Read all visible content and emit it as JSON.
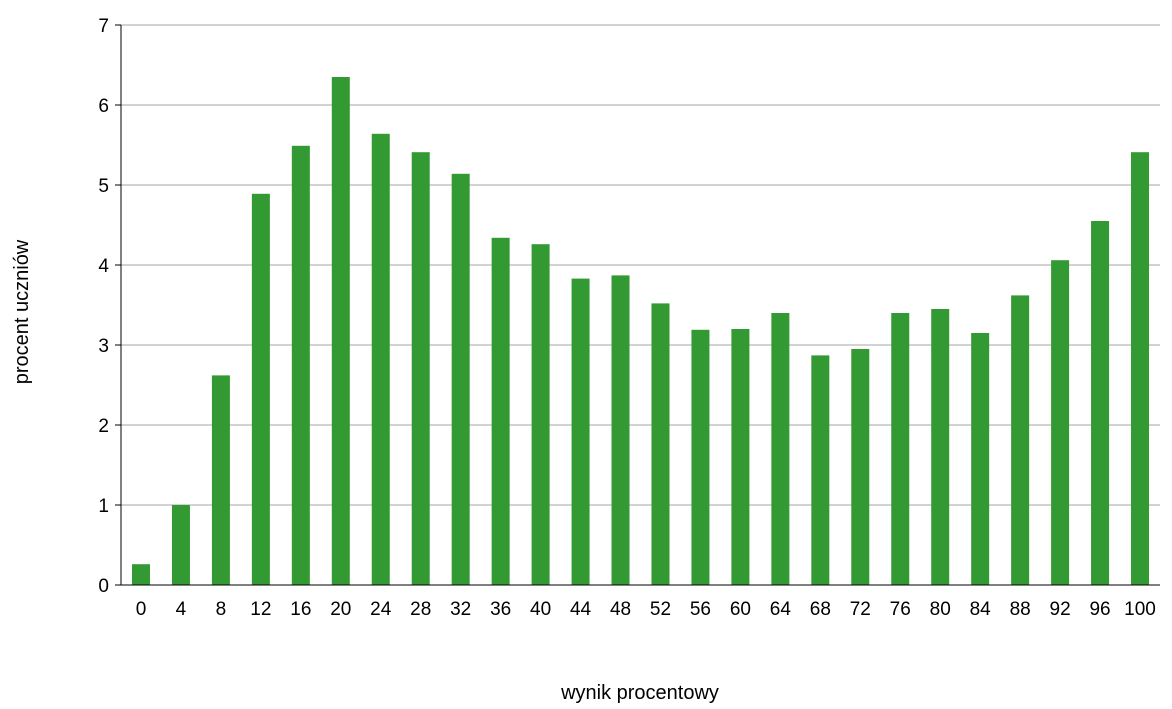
{
  "chart_data": {
    "type": "bar",
    "title": "",
    "xlabel": "wynik procentowy",
    "ylabel": "procent uczniów",
    "categories": [
      "0",
      "4",
      "8",
      "12",
      "16",
      "20",
      "24",
      "28",
      "32",
      "36",
      "40",
      "44",
      "48",
      "52",
      "56",
      "60",
      "64",
      "68",
      "72",
      "76",
      "80",
      "84",
      "88",
      "92",
      "96",
      "100"
    ],
    "series": [
      {
        "values": [
          0.26,
          1.0,
          2.62,
          4.89,
          5.49,
          6.35,
          5.64,
          5.41,
          5.14,
          4.34,
          4.26,
          3.83,
          3.87,
          3.52,
          3.19,
          3.2,
          3.4,
          2.87,
          2.95,
          3.4,
          3.45,
          3.15,
          3.62,
          4.06,
          4.55,
          5.41
        ]
      }
    ],
    "ylim": [
      0,
      7
    ],
    "yticks": [
      0,
      1,
      2,
      3,
      4,
      5,
      6,
      7
    ],
    "grid": true,
    "legend": "none",
    "colors": {
      "bar": "#339933",
      "grid": "#a6a6a6",
      "axis": "#000000"
    }
  }
}
